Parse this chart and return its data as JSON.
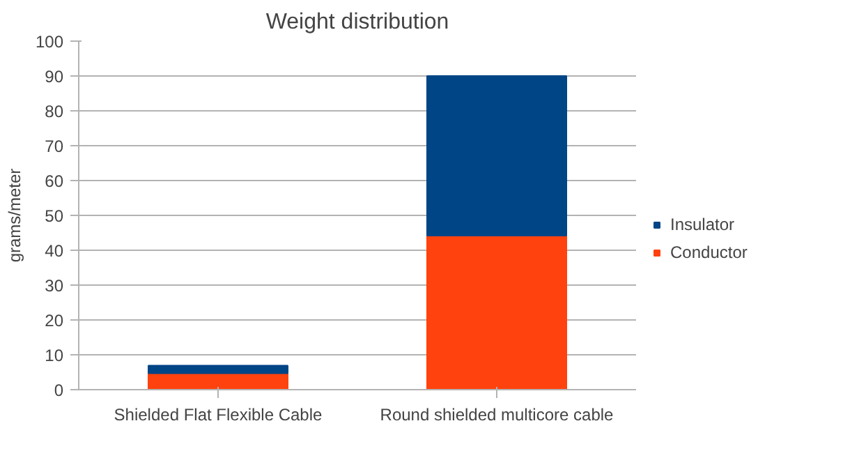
{
  "chart_data": {
    "type": "bar",
    "title": "Weight distribution",
    "ylabel": "grams/meter",
    "categories": [
      "Shielded Flat Flexible Cable",
      "Round shielded multicore cable"
    ],
    "stacked": true,
    "series": [
      {
        "name": "Conductor",
        "color": "#ff420e",
        "values": [
          4.7,
          44.2
        ]
      },
      {
        "name": "Insulator",
        "color": "#004586",
        "values": [
          2.2,
          45.8
        ]
      }
    ],
    "ylim": [
      0,
      100
    ],
    "yticks": [
      0,
      10,
      20,
      30,
      40,
      50,
      60,
      70,
      80,
      90,
      100
    ],
    "grid": "y",
    "legend": "right"
  }
}
